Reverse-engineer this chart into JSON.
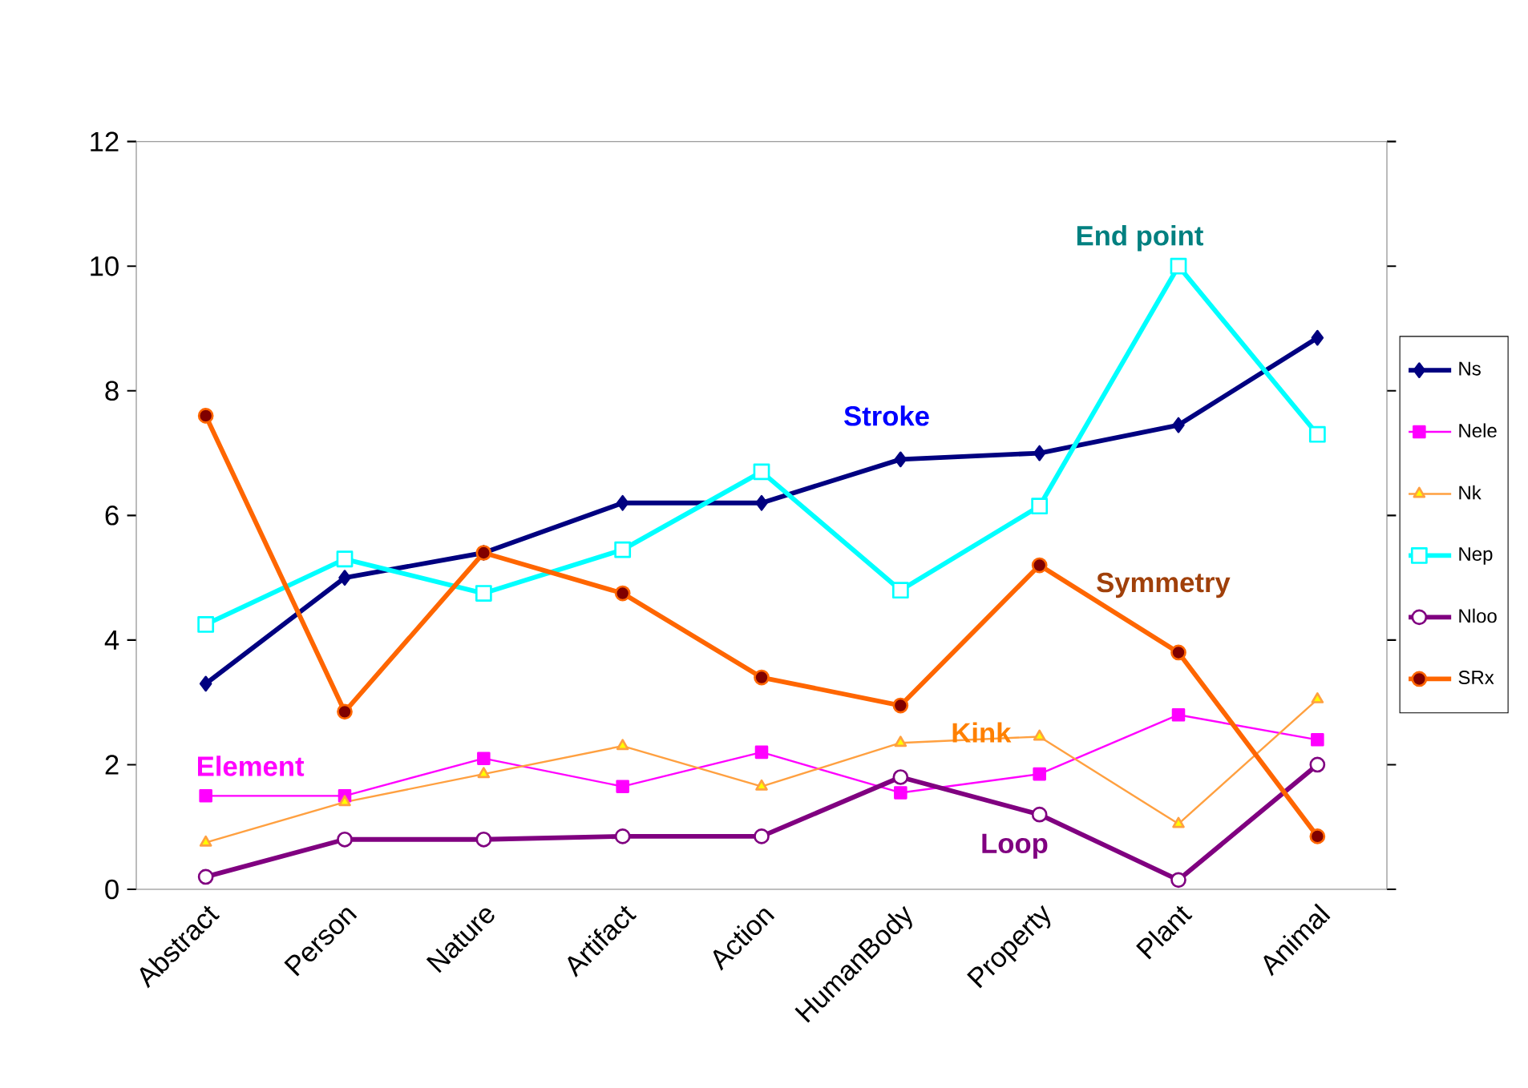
{
  "chart_data": {
    "type": "line",
    "categories": [
      "Abstract",
      "Person",
      "Nature",
      "Artifact",
      "Action",
      "HumanBody",
      "Property",
      "Plant",
      "Animal"
    ],
    "series": [
      {
        "name": "Ns",
        "color": "#000080",
        "marker": "diamond",
        "values": [
          3.3,
          5.0,
          5.4,
          6.2,
          6.2,
          6.9,
          7.0,
          7.45,
          8.85
        ]
      },
      {
        "name": "Nele",
        "color": "#ff00ff",
        "marker": "square",
        "values": [
          1.5,
          1.5,
          2.1,
          1.65,
          2.2,
          1.55,
          1.85,
          2.8,
          2.4
        ]
      },
      {
        "name": "Nk",
        "color": "#ffa040",
        "marker": "triangle",
        "values": [
          0.75,
          1.4,
          1.85,
          2.3,
          1.65,
          2.35,
          2.45,
          1.05,
          3.05
        ]
      },
      {
        "name": "Nep",
        "color": "#00ffff",
        "marker": "square",
        "values": [
          4.25,
          5.3,
          4.75,
          5.45,
          6.7,
          4.8,
          6.15,
          10.0,
          7.3
        ]
      },
      {
        "name": "Nloo",
        "color": "#800080",
        "marker": "circle",
        "values": [
          0.2,
          0.8,
          0.8,
          0.85,
          0.85,
          1.8,
          1.2,
          0.15,
          2.0
        ]
      },
      {
        "name": "SRx",
        "color": "#ff6600",
        "marker": "circle",
        "values": [
          7.6,
          2.85,
          5.4,
          4.75,
          3.4,
          2.95,
          5.2,
          3.8,
          0.85
        ]
      }
    ],
    "ylim": [
      0,
      12
    ],
    "yticks": [
      0,
      2,
      4,
      6,
      8,
      10,
      12
    ],
    "grid": false,
    "legend": "right",
    "line_style": "solid",
    "annotations": [
      "Stroke",
      "End point",
      "Symmetry",
      "Kink",
      "Element",
      "Loop"
    ]
  }
}
